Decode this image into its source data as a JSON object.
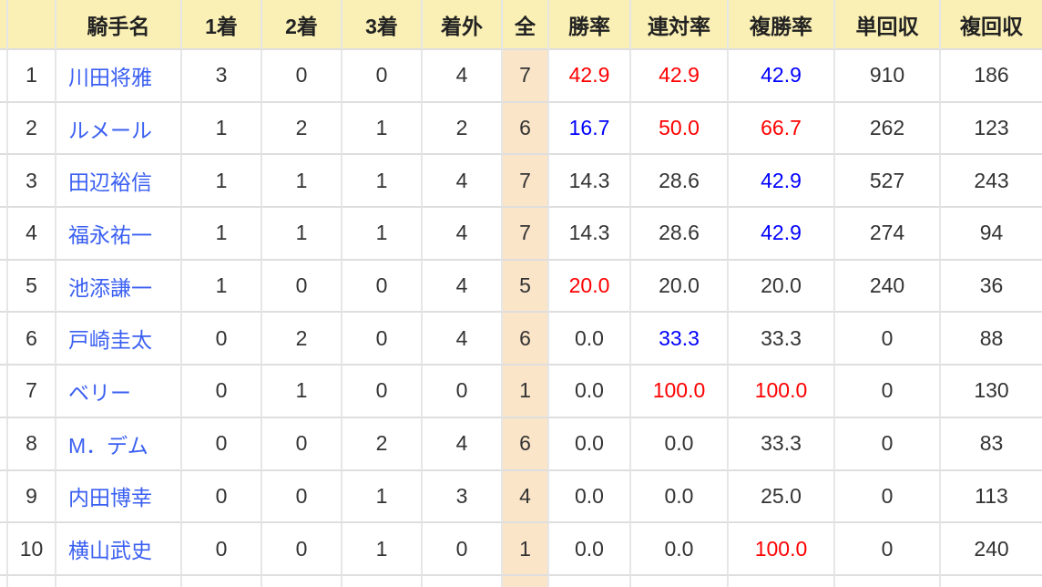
{
  "colors": {
    "header_bg": "#faf0b5",
    "total_col_bg": "#fae5c9",
    "positive_red": "#ff0000",
    "accent_blue": "#0000ff",
    "link_blue": "#3a5ff2"
  },
  "headers": [
    "騎手名",
    "1着",
    "2着",
    "3着",
    "着外",
    "全",
    "勝率",
    "連対率",
    "複勝率",
    "単回収",
    "複回収"
  ],
  "rows": [
    {
      "rank": "1",
      "name": "川田将雅",
      "first": "3",
      "second": "0",
      "third": "0",
      "out": "4",
      "total": "7",
      "win_rate": {
        "v": "42.9",
        "c": "red"
      },
      "quinella_rate": {
        "v": "42.9",
        "c": "red"
      },
      "show_rate": {
        "v": "42.9",
        "c": "blue"
      },
      "win_recovery": "910",
      "show_recovery": "186"
    },
    {
      "rank": "2",
      "name": "ルメール",
      "first": "1",
      "second": "2",
      "third": "1",
      "out": "2",
      "total": "6",
      "win_rate": {
        "v": "16.7",
        "c": "blue"
      },
      "quinella_rate": {
        "v": "50.0",
        "c": "red"
      },
      "show_rate": {
        "v": "66.7",
        "c": "red"
      },
      "win_recovery": "262",
      "show_recovery": "123"
    },
    {
      "rank": "3",
      "name": "田辺裕信",
      "first": "1",
      "second": "1",
      "third": "1",
      "out": "4",
      "total": "7",
      "win_rate": {
        "v": "14.3",
        "c": "black"
      },
      "quinella_rate": {
        "v": "28.6",
        "c": "black"
      },
      "show_rate": {
        "v": "42.9",
        "c": "blue"
      },
      "win_recovery": "527",
      "show_recovery": "243"
    },
    {
      "rank": "4",
      "name": "福永祐一",
      "first": "1",
      "second": "1",
      "third": "1",
      "out": "4",
      "total": "7",
      "win_rate": {
        "v": "14.3",
        "c": "black"
      },
      "quinella_rate": {
        "v": "28.6",
        "c": "black"
      },
      "show_rate": {
        "v": "42.9",
        "c": "blue"
      },
      "win_recovery": "274",
      "show_recovery": "94"
    },
    {
      "rank": "5",
      "name": "池添謙一",
      "first": "1",
      "second": "0",
      "third": "0",
      "out": "4",
      "total": "5",
      "win_rate": {
        "v": "20.0",
        "c": "red"
      },
      "quinella_rate": {
        "v": "20.0",
        "c": "black"
      },
      "show_rate": {
        "v": "20.0",
        "c": "black"
      },
      "win_recovery": "240",
      "show_recovery": "36"
    },
    {
      "rank": "6",
      "name": "戸崎圭太",
      "first": "0",
      "second": "2",
      "third": "0",
      "out": "4",
      "total": "6",
      "win_rate": {
        "v": "0.0",
        "c": "black"
      },
      "quinella_rate": {
        "v": "33.3",
        "c": "blue"
      },
      "show_rate": {
        "v": "33.3",
        "c": "black"
      },
      "win_recovery": "0",
      "show_recovery": "88"
    },
    {
      "rank": "7",
      "name": "ベリー",
      "first": "0",
      "second": "1",
      "third": "0",
      "out": "0",
      "total": "1",
      "win_rate": {
        "v": "0.0",
        "c": "black"
      },
      "quinella_rate": {
        "v": "100.0",
        "c": "red"
      },
      "show_rate": {
        "v": "100.0",
        "c": "red"
      },
      "win_recovery": "0",
      "show_recovery": "130"
    },
    {
      "rank": "8",
      "name": "M．デム",
      "first": "0",
      "second": "0",
      "third": "2",
      "out": "4",
      "total": "6",
      "win_rate": {
        "v": "0.0",
        "c": "black"
      },
      "quinella_rate": {
        "v": "0.0",
        "c": "black"
      },
      "show_rate": {
        "v": "33.3",
        "c": "black"
      },
      "win_recovery": "0",
      "show_recovery": "83"
    },
    {
      "rank": "9",
      "name": "内田博幸",
      "first": "0",
      "second": "0",
      "third": "1",
      "out": "3",
      "total": "4",
      "win_rate": {
        "v": "0.0",
        "c": "black"
      },
      "quinella_rate": {
        "v": "0.0",
        "c": "black"
      },
      "show_rate": {
        "v": "25.0",
        "c": "black"
      },
      "win_recovery": "0",
      "show_recovery": "113"
    },
    {
      "rank": "10",
      "name": "横山武史",
      "first": "0",
      "second": "0",
      "third": "1",
      "out": "0",
      "total": "1",
      "win_rate": {
        "v": "0.0",
        "c": "black"
      },
      "quinella_rate": {
        "v": "0.0",
        "c": "black"
      },
      "show_rate": {
        "v": "100.0",
        "c": "red"
      },
      "win_recovery": "0",
      "show_recovery": "240"
    }
  ]
}
